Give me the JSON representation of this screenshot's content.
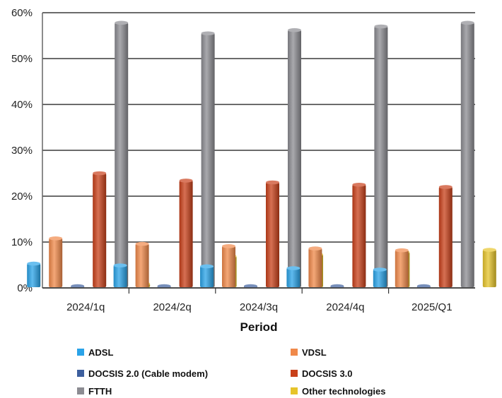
{
  "chart_data": {
    "type": "bar",
    "categories": [
      "2024/1q",
      "2024/2q",
      "2024/3q",
      "2024/4q",
      "2025/Q1"
    ],
    "xlabel": "Period",
    "ylabel": "",
    "ylim": [
      0,
      60
    ],
    "y_ticks": [
      "0%",
      "10%",
      "20%",
      "30%",
      "40%",
      "50%",
      "60%"
    ],
    "grid": "horizontal",
    "legend_position": "bottom",
    "series": [
      {
        "name": "ADSL",
        "color": "#2aa3e8",
        "values": [
          5.3,
          4.9,
          4.7,
          4.3,
          4.0
        ]
      },
      {
        "name": "VDSL",
        "color": "#f0894a",
        "values": [
          10.8,
          9.6,
          9.1,
          8.6,
          8.2
        ]
      },
      {
        "name": "DOCSIS 2.0 (Cable modem)",
        "color": "#3d5f9e",
        "values": [
          0.3,
          0.3,
          0.3,
          0.3,
          0.3
        ]
      },
      {
        "name": "DOCSIS 3.0",
        "color": "#c8401a",
        "values": [
          25.0,
          23.4,
          23.0,
          22.5,
          22.0
        ]
      },
      {
        "name": "FTTH",
        "color": "#8c8c92",
        "values": [
          57.8,
          55.5,
          56.2,
          57.0,
          57.8
        ]
      },
      {
        "name": "Other technologies",
        "color": "#e6c42a",
        "values": [
          0.9,
          6.9,
          7.3,
          7.8,
          8.3
        ]
      }
    ]
  }
}
